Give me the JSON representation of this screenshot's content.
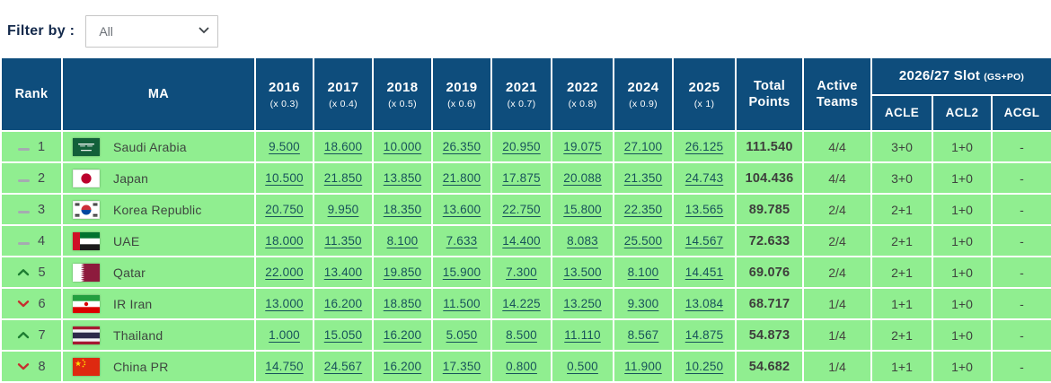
{
  "filter": {
    "label": "Filter by :",
    "selected": "All",
    "options": [
      "All"
    ]
  },
  "table": {
    "rank_header": "Rank",
    "ma_header": "MA",
    "total_header": "Total Points",
    "active_header": "Active Teams",
    "slot_header": {
      "title": "2026/27 Slot",
      "suffix": "(GS+PO)",
      "sub": [
        "ACLE",
        "ACL2",
        "ACGL"
      ]
    },
    "year_columns": [
      {
        "year": "2016",
        "mult": "(x 0.3)"
      },
      {
        "year": "2017",
        "mult": "(x 0.4)"
      },
      {
        "year": "2018",
        "mult": "(x 0.5)"
      },
      {
        "year": "2019",
        "mult": "(x 0.6)"
      },
      {
        "year": "2021",
        "mult": "(x 0.7)"
      },
      {
        "year": "2022",
        "mult": "(x 0.8)"
      },
      {
        "year": "2024",
        "mult": "(x 0.9)"
      },
      {
        "year": "2025",
        "mult": "(x 1)"
      }
    ],
    "rows": [
      {
        "trend": "same",
        "rank": "1",
        "country": "Saudi Arabia",
        "flag": "sa",
        "scores": [
          "9.500",
          "18.600",
          "10.000",
          "26.350",
          "20.950",
          "19.075",
          "27.100",
          "26.125"
        ],
        "total": "111.540",
        "active": "4/4",
        "acle": "3+0",
        "acl2": "1+0",
        "acgl": "-"
      },
      {
        "trend": "same",
        "rank": "2",
        "country": "Japan",
        "flag": "jp",
        "scores": [
          "10.500",
          "21.850",
          "13.850",
          "21.800",
          "17.875",
          "20.088",
          "21.350",
          "24.743"
        ],
        "total": "104.436",
        "active": "4/4",
        "acle": "3+0",
        "acl2": "1+0",
        "acgl": "-"
      },
      {
        "trend": "same",
        "rank": "3",
        "country": "Korea Republic",
        "flag": "kr",
        "scores": [
          "20.750",
          "9.950",
          "18.350",
          "13.600",
          "22.750",
          "15.800",
          "22.350",
          "13.565"
        ],
        "total": "89.785",
        "active": "2/4",
        "acle": "2+1",
        "acl2": "1+0",
        "acgl": "-"
      },
      {
        "trend": "same",
        "rank": "4",
        "country": "UAE",
        "flag": "ae",
        "scores": [
          "18.000",
          "11.350",
          "8.100",
          "7.633",
          "14.400",
          "8.083",
          "25.500",
          "14.567"
        ],
        "total": "72.633",
        "active": "2/4",
        "acle": "2+1",
        "acl2": "1+0",
        "acgl": "-"
      },
      {
        "trend": "up",
        "rank": "5",
        "country": "Qatar",
        "flag": "qa",
        "scores": [
          "22.000",
          "13.400",
          "19.850",
          "15.900",
          "7.300",
          "13.500",
          "8.100",
          "14.451"
        ],
        "total": "69.076",
        "active": "2/4",
        "acle": "2+1",
        "acl2": "1+0",
        "acgl": "-"
      },
      {
        "trend": "down",
        "rank": "6",
        "country": "IR Iran",
        "flag": "ir",
        "scores": [
          "13.000",
          "16.200",
          "18.850",
          "11.500",
          "14.225",
          "13.250",
          "9.300",
          "13.084"
        ],
        "total": "68.717",
        "active": "1/4",
        "acle": "1+1",
        "acl2": "1+0",
        "acgl": "-"
      },
      {
        "trend": "up",
        "rank": "7",
        "country": "Thailand",
        "flag": "th",
        "scores": [
          "1.000",
          "15.050",
          "16.200",
          "5.050",
          "8.500",
          "11.110",
          "8.567",
          "14.875"
        ],
        "total": "54.873",
        "active": "1/4",
        "acle": "2+1",
        "acl2": "1+0",
        "acgl": "-"
      },
      {
        "trend": "down",
        "rank": "8",
        "country": "China PR",
        "flag": "cn",
        "scores": [
          "14.750",
          "24.567",
          "16.200",
          "17.350",
          "0.800",
          "0.500",
          "11.900",
          "10.250"
        ],
        "total": "54.682",
        "active": "1/4",
        "acle": "1+1",
        "acl2": "1+0",
        "acgl": "-"
      }
    ]
  },
  "colors": {
    "header_bg": "#0e4d7c",
    "row_bg": "#90ee90",
    "link": "#17525a",
    "trend_up": "#1e7d32",
    "trend_down": "#c62f2f",
    "trend_same": "#a5abb1",
    "filter_label": "#13294b"
  }
}
